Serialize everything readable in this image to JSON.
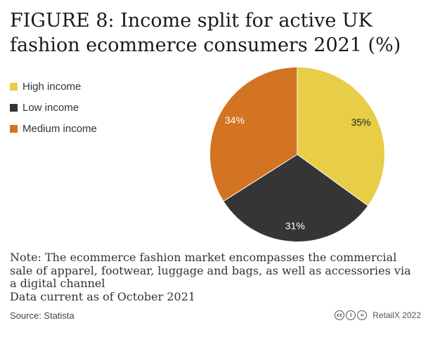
{
  "title": "FIGURE 8: Income split for active UK fashion ecommerce consumers 2021 (%)",
  "note": "Note: The ecommerce fashion market encompasses the commercial sale of apparel, footwear, luggage and bags, as well as accessories via a digital channel",
  "data_current": "Data current as of October 2021",
  "source": "Source: Statista",
  "credit": "RetailX 2022",
  "license_icons": [
    "cc-icon",
    "by-icon",
    "nd-icon"
  ],
  "chart_data": {
    "type": "pie",
    "title": "FIGURE 8: Income split for active UK fashion ecommerce consumers 2021 (%)",
    "categories": [
      "High income",
      "Low income",
      "Medium income"
    ],
    "values": [
      35,
      31,
      34
    ],
    "labels": [
      "35%",
      "31%",
      "34%"
    ],
    "colors": [
      "#e8cd47",
      "#353535",
      "#d27421"
    ],
    "label_colors": [
      "#222222",
      "#ffffff",
      "#ffffff"
    ],
    "legend": "top-left"
  }
}
